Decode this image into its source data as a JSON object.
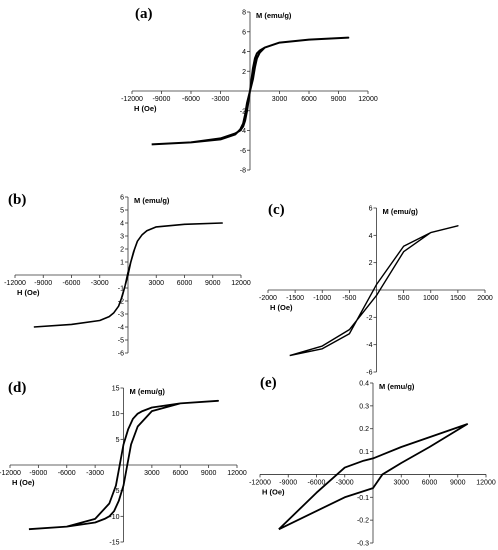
{
  "chart_data": [
    {
      "panel_label": "(a)",
      "type": "line",
      "xlabel": "H (Oe)",
      "ylabel": "M (emu/g)",
      "xlim": [
        -12000,
        12000
      ],
      "ylim": [
        -8,
        8
      ],
      "xticks": [
        -12000,
        -9000,
        -6000,
        -3000,
        3000,
        6000,
        9000,
        12000
      ],
      "yticks": [
        -8,
        -6,
        -4,
        -2,
        2,
        4,
        6,
        8
      ],
      "x_tick_labels": [
        "-12000",
        "-9000",
        "-6000",
        "-3000",
        "3000",
        "6000",
        "9000",
        "12000"
      ],
      "y_tick_labels": [
        "-8",
        "-6",
        "-4",
        "-2",
        "2",
        "4",
        "6",
        "8"
      ],
      "grid": false,
      "series": [
        {
          "x": [
            -10000,
            -6000,
            -3000,
            -1500,
            -1000,
            -700,
            -500,
            -300,
            0,
            300,
            500,
            700,
            1000,
            1500,
            3000,
            6000,
            10000,
            6000,
            3000,
            1500,
            1000,
            700,
            500,
            300,
            0,
            -300,
            -500,
            -700,
            -1000,
            -1500,
            -3000,
            -6000,
            -10000
          ],
          "y": [
            -5.4,
            -5.2,
            -4.8,
            -4.3,
            -4.0,
            -3.6,
            -3.0,
            -2.0,
            0.0,
            1.2,
            2.4,
            3.3,
            3.9,
            4.4,
            4.9,
            5.2,
            5.4,
            5.2,
            4.9,
            4.4,
            4.1,
            3.8,
            3.3,
            2.3,
            0.0,
            -1.2,
            -2.4,
            -3.3,
            -3.9,
            -4.4,
            -4.9,
            -5.2,
            -5.4
          ]
        }
      ]
    },
    {
      "panel_label": "(b)",
      "type": "line",
      "xlabel": "H (Oe)",
      "ylabel": "M (emu/g)",
      "xlim": [
        -12000,
        12000
      ],
      "ylim": [
        -6,
        6
      ],
      "xticks": [
        -12000,
        -9000,
        -6000,
        -3000,
        3000,
        6000,
        9000,
        12000
      ],
      "yticks": [
        -6,
        -5,
        -4,
        -3,
        -2,
        -1,
        1,
        2,
        3,
        4,
        5,
        6
      ],
      "x_tick_labels": [
        "-12000",
        "-9000",
        "-6000",
        "-3000",
        "3000",
        "6000",
        "9000",
        "12000"
      ],
      "y_tick_labels": [
        "-6",
        "-5",
        "-4",
        "-3",
        "-2",
        "-1",
        "1",
        "2",
        "3",
        "4",
        "5",
        "6"
      ],
      "grid": false,
      "series": [
        {
          "x": [
            -10000,
            -6000,
            -3000,
            -2000,
            -1500,
            -1000,
            -600,
            -300,
            0,
            300,
            700,
            1000,
            1500,
            2000,
            3000,
            6000,
            10000,
            6000,
            3000,
            2000,
            1500,
            1000,
            600,
            300,
            0,
            -300,
            -700,
            -1000,
            -1500,
            -2000,
            -3000,
            -6000,
            -10000
          ],
          "y": [
            -4.0,
            -3.8,
            -3.5,
            -3.2,
            -2.9,
            -2.4,
            -1.6,
            -0.8,
            0.2,
            1.0,
            2.0,
            2.6,
            3.1,
            3.4,
            3.7,
            3.9,
            4.0,
            3.9,
            3.7,
            3.4,
            3.1,
            2.6,
            1.8,
            1.0,
            0.0,
            -0.8,
            -1.8,
            -2.4,
            -2.9,
            -3.2,
            -3.5,
            -3.8,
            -4.0
          ]
        }
      ]
    },
    {
      "panel_label": "(c)",
      "type": "line",
      "xlabel": "H (Oe)",
      "ylabel": "M (emu/g)",
      "xlim": [
        -2000,
        2000
      ],
      "ylim": [
        -6,
        6
      ],
      "xticks": [
        -2000,
        -1500,
        -1000,
        -500,
        500,
        1000,
        1500,
        2000
      ],
      "yticks": [
        -6,
        -4,
        -2,
        2,
        4,
        6
      ],
      "x_tick_labels": [
        "-2000",
        "-1500",
        "-1000",
        "-500",
        "500",
        "1000",
        "1500",
        "2000"
      ],
      "y_tick_labels": [
        "-6",
        "-4",
        "-2",
        "2",
        "4",
        "6"
      ],
      "grid": false,
      "series": [
        {
          "x": [
            -1600,
            -1000,
            -500,
            0,
            500,
            1000,
            1500,
            1000,
            500,
            0,
            -500,
            -1000,
            -1600
          ],
          "y": [
            -4.8,
            -4.3,
            -3.2,
            0.4,
            3.2,
            4.2,
            4.7,
            4.2,
            2.8,
            -0.4,
            -2.9,
            -4.1,
            -4.8
          ]
        }
      ]
    },
    {
      "panel_label": "(d)",
      "type": "line",
      "xlabel": "H (Oe)",
      "ylabel": "M (emu/g)",
      "xlim": [
        -12000,
        12000
      ],
      "ylim": [
        -15,
        15
      ],
      "xticks": [
        -12000,
        -9000,
        -6000,
        -3000,
        3000,
        6000,
        9000,
        12000
      ],
      "yticks": [
        -15,
        -10,
        -5,
        5,
        10,
        15
      ],
      "x_tick_labels": [
        "-12000",
        "-9000",
        "-6000",
        "-3000",
        "3000",
        "6000",
        "9000",
        "12000"
      ],
      "y_tick_labels": [
        "-15",
        "-10",
        "-5",
        "5",
        "10",
        "15"
      ],
      "grid": false,
      "series": [
        {
          "x": [
            -10000,
            -6000,
            -3000,
            -1500,
            -800,
            -300,
            0,
            500,
            1000,
            1500,
            2000,
            3000,
            6000,
            10000,
            6000,
            3000,
            1500,
            800,
            300,
            0,
            -500,
            -1000,
            -1500,
            -2000,
            -3000,
            -6000,
            -10000
          ],
          "y": [
            -12.5,
            -12.0,
            -10.5,
            -7.5,
            -4.0,
            1.0,
            4.0,
            7.0,
            9.0,
            10.0,
            10.5,
            11.2,
            12.0,
            12.5,
            12.0,
            10.5,
            7.5,
            4.0,
            -1.0,
            -4.0,
            -7.0,
            -9.0,
            -10.0,
            -10.5,
            -11.2,
            -12.0,
            -12.5
          ]
        }
      ]
    },
    {
      "panel_label": "(e)",
      "type": "line",
      "xlabel": "H (Oe)",
      "ylabel": "M (emu/g)",
      "xlim": [
        -12000,
        12000
      ],
      "ylim": [
        -0.3,
        0.4
      ],
      "xticks": [
        -12000,
        -9000,
        -6000,
        -3000,
        3000,
        6000,
        9000,
        12000
      ],
      "yticks": [
        -0.3,
        -0.2,
        -0.1,
        0.1,
        0.2,
        0.3,
        0.4
      ],
      "x_tick_labels": [
        "-12000",
        "-9000",
        "-6000",
        "-3000",
        "3000",
        "6000",
        "9000",
        "12000"
      ],
      "y_tick_labels": [
        "-0.3",
        "-0.2",
        "-0.1",
        "0.1",
        "0.2",
        "0.3",
        "0.4"
      ],
      "grid": false,
      "series": [
        {
          "x": [
            -10000,
            -3000,
            0,
            1000,
            3000,
            6000,
            10000,
            3000,
            0,
            -1000,
            -3000,
            -6000,
            -10000
          ],
          "y": [
            -0.24,
            -0.1,
            -0.06,
            0.0,
            0.05,
            0.12,
            0.22,
            0.12,
            0.07,
            0.06,
            0.03,
            -0.08,
            -0.24
          ]
        }
      ]
    }
  ]
}
